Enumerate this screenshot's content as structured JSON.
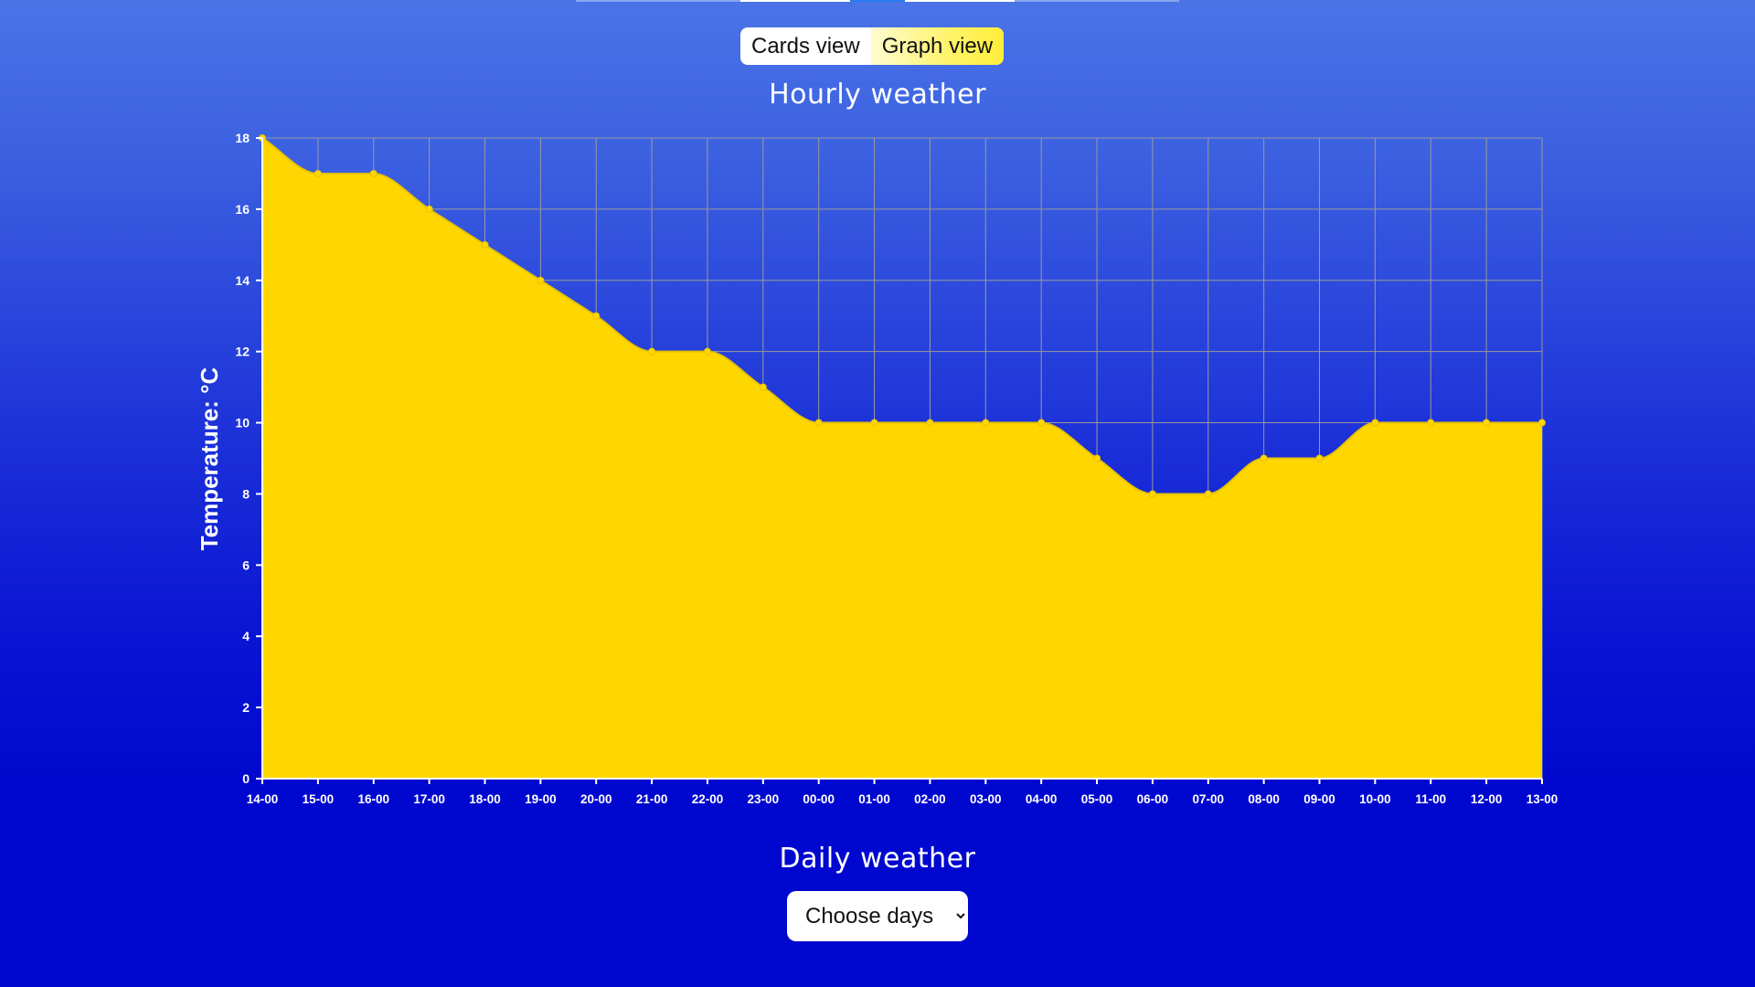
{
  "view_toggle": {
    "cards_label": "Cards view",
    "graph_label": "Graph view",
    "active": "graph"
  },
  "hourly": {
    "title": "Hourly weather"
  },
  "daily": {
    "title": "Daily weather",
    "select_value": "Choose days"
  },
  "colors": {
    "fill": "#ffd700",
    "grid": "#9a9a9a",
    "axis_text": "#ffffff",
    "toggle_active": "#fff36a"
  },
  "chart_data": {
    "type": "area",
    "x": [
      "14-00",
      "15-00",
      "16-00",
      "17-00",
      "18-00",
      "19-00",
      "20-00",
      "21-00",
      "22-00",
      "23-00",
      "00-00",
      "01-00",
      "02-00",
      "03-00",
      "04-00",
      "05-00",
      "06-00",
      "07-00",
      "08-00",
      "09-00",
      "10-00",
      "11-00",
      "12-00",
      "13-00"
    ],
    "series": [
      {
        "values": [
          18,
          17,
          17,
          16,
          15,
          14,
          13,
          12,
          12,
          11,
          10,
          10,
          10,
          10,
          10,
          9,
          8,
          8,
          9,
          9,
          10,
          10,
          10,
          10
        ]
      }
    ],
    "ylabel": "Temperature: °C",
    "xlabel": "",
    "ylim": [
      0,
      18
    ],
    "yticks": [
      0,
      2,
      4,
      6,
      8,
      10,
      12,
      14,
      16,
      18
    ],
    "grid": true,
    "smooth": true
  }
}
